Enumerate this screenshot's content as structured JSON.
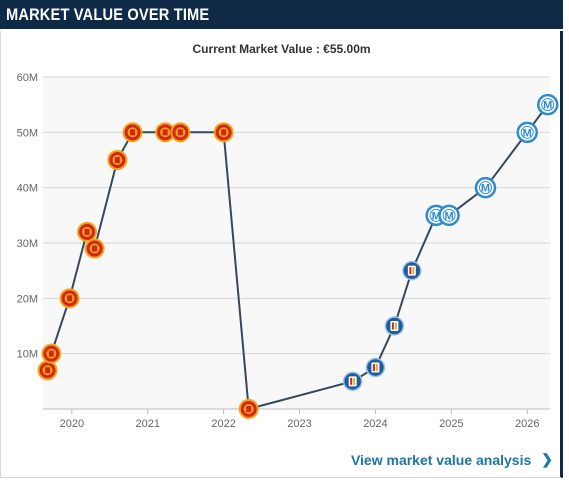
{
  "header": {
    "title": "MARKET VALUE OVER TIME"
  },
  "subtitle": "Current Market Value : €55.00m",
  "footer": {
    "link_label": "View market value analysis",
    "chevron_icon": "chevron-right-icon"
  },
  "colors": {
    "header_bg": "#0e2a47",
    "line": "#34495e",
    "plot_bg": "#f8f8f8",
    "grid": "#d6d6d6",
    "link": "#1d75a3",
    "club_a": "#d3261b",
    "club_a_accent": "#f2a516",
    "club_b": "#1f5c99",
    "club_b_accent": "#d8b43a",
    "club_c": "#2e8bd0"
  },
  "chart_data": {
    "type": "line",
    "title": "Current Market Value : €55.00m",
    "xlabel": "",
    "ylabel": "",
    "ylim": [
      0,
      60
    ],
    "xlim": [
      2019.62,
      2026.3
    ],
    "y_ticks": [
      {
        "value": 10,
        "label": "10M"
      },
      {
        "value": 20,
        "label": "20M"
      },
      {
        "value": 30,
        "label": "30M"
      },
      {
        "value": 40,
        "label": "40M"
      },
      {
        "value": 50,
        "label": "50M"
      },
      {
        "value": 60,
        "label": "60M"
      }
    ],
    "x_ticks": [
      {
        "value": 2020,
        "label": "2020"
      },
      {
        "value": 2021,
        "label": "2021"
      },
      {
        "value": 2022,
        "label": "2022"
      },
      {
        "value": 2023,
        "label": "2023"
      },
      {
        "value": 2024,
        "label": "2024"
      },
      {
        "value": 2025,
        "label": "2025"
      },
      {
        "value": 2026,
        "label": "2026"
      }
    ],
    "grid": true,
    "legend": "none",
    "points": [
      {
        "x": 2019.68,
        "y": 7,
        "club": "a"
      },
      {
        "x": 2019.73,
        "y": 10,
        "club": "a"
      },
      {
        "x": 2019.97,
        "y": 20,
        "club": "a"
      },
      {
        "x": 2020.2,
        "y": 32,
        "club": "a"
      },
      {
        "x": 2020.3,
        "y": 29,
        "club": "a"
      },
      {
        "x": 2020.6,
        "y": 45,
        "club": "a"
      },
      {
        "x": 2020.8,
        "y": 50,
        "club": "a"
      },
      {
        "x": 2021.23,
        "y": 50,
        "club": "a"
      },
      {
        "x": 2021.43,
        "y": 50,
        "club": "a"
      },
      {
        "x": 2022.0,
        "y": 50,
        "club": "a"
      },
      {
        "x": 2022.33,
        "y": 0,
        "club": "a"
      },
      {
        "x": 2023.7,
        "y": 5,
        "club": "b"
      },
      {
        "x": 2024.0,
        "y": 7.5,
        "club": "b"
      },
      {
        "x": 2024.25,
        "y": 15,
        "club": "b"
      },
      {
        "x": 2024.48,
        "y": 25,
        "club": "b"
      },
      {
        "x": 2024.8,
        "y": 35,
        "club": "c"
      },
      {
        "x": 2024.97,
        "y": 35,
        "club": "c"
      },
      {
        "x": 2025.45,
        "y": 40,
        "club": "c"
      },
      {
        "x": 2026.0,
        "y": 50,
        "club": "c"
      },
      {
        "x": 2026.27,
        "y": 55,
        "club": "c"
      }
    ]
  }
}
